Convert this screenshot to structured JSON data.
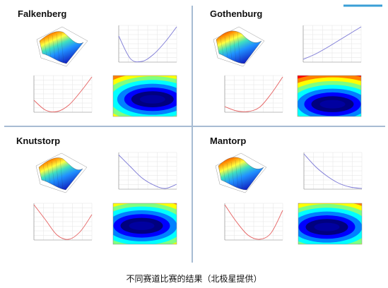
{
  "caption": "不同赛道比赛的结果（北极星提供）",
  "chart_data": [
    {
      "track": "Falkenberg",
      "line_curve": {
        "type": "line",
        "color": "#7b78d6",
        "x": [
          0,
          0.2,
          0.4,
          0.6,
          0.8,
          1.0
        ],
        "values": [
          0.72,
          0.08,
          0.0,
          0.2,
          0.55,
          0.98
        ]
      },
      "red_curve": {
        "type": "line",
        "color": "#e56060",
        "x": [
          0,
          0.2,
          0.4,
          0.6,
          0.8,
          1.0
        ],
        "values": [
          0.32,
          0.04,
          0.0,
          0.18,
          0.55,
          0.98
        ]
      },
      "heatmap": {
        "type": "heatmap",
        "min_center": [
          0.62,
          0.58
        ]
      }
    },
    {
      "track": "Gothenburg",
      "line_curve": {
        "type": "line",
        "color": "#7b78d6",
        "x": [
          0,
          0.2,
          0.4,
          0.6,
          0.8,
          1.0
        ],
        "values": [
          0.06,
          0.2,
          0.38,
          0.58,
          0.78,
          0.98
        ]
      },
      "red_curve": {
        "type": "line",
        "color": "#e56060",
        "x": [
          0,
          0.2,
          0.4,
          0.6,
          0.8,
          1.0
        ],
        "values": [
          0.14,
          0.02,
          0.0,
          0.12,
          0.5,
          0.98
        ]
      },
      "heatmap": {
        "type": "heatmap",
        "min_center": [
          0.55,
          0.7
        ]
      }
    },
    {
      "track": "Knutstorp",
      "line_curve": {
        "type": "line",
        "color": "#7b78d6",
        "x": [
          0,
          0.2,
          0.4,
          0.6,
          0.8,
          1.0
        ],
        "values": [
          0.95,
          0.62,
          0.3,
          0.1,
          0.0,
          0.12
        ]
      },
      "red_curve": {
        "type": "line",
        "color": "#e56060",
        "x": [
          0,
          0.2,
          0.4,
          0.6,
          0.8,
          1.0
        ],
        "values": [
          0.98,
          0.55,
          0.12,
          0.0,
          0.22,
          0.7
        ]
      },
      "heatmap": {
        "type": "heatmap",
        "min_center": [
          0.45,
          0.55
        ]
      }
    },
    {
      "track": "Mantorp",
      "line_curve": {
        "type": "line",
        "color": "#7b78d6",
        "x": [
          0,
          0.2,
          0.4,
          0.6,
          0.8,
          1.0
        ],
        "values": [
          0.98,
          0.62,
          0.35,
          0.15,
          0.04,
          0.0
        ]
      },
      "red_curve": {
        "type": "line",
        "color": "#e56060",
        "x": [
          0,
          0.2,
          0.4,
          0.6,
          0.8,
          1.0
        ],
        "values": [
          0.98,
          0.5,
          0.12,
          0.0,
          0.18,
          0.82
        ]
      },
      "heatmap": {
        "type": "heatmap",
        "min_center": [
          0.45,
          0.58
        ]
      }
    }
  ],
  "colors": {
    "divider": "#a7bcd3",
    "accent_bar": "#3a9fd6",
    "grid": "#e3e3e3",
    "jet": [
      "#00007f",
      "#0000ff",
      "#0080ff",
      "#00ffff",
      "#80ff80",
      "#ffff00",
      "#ff8000",
      "#ff0000",
      "#7f0000"
    ]
  }
}
